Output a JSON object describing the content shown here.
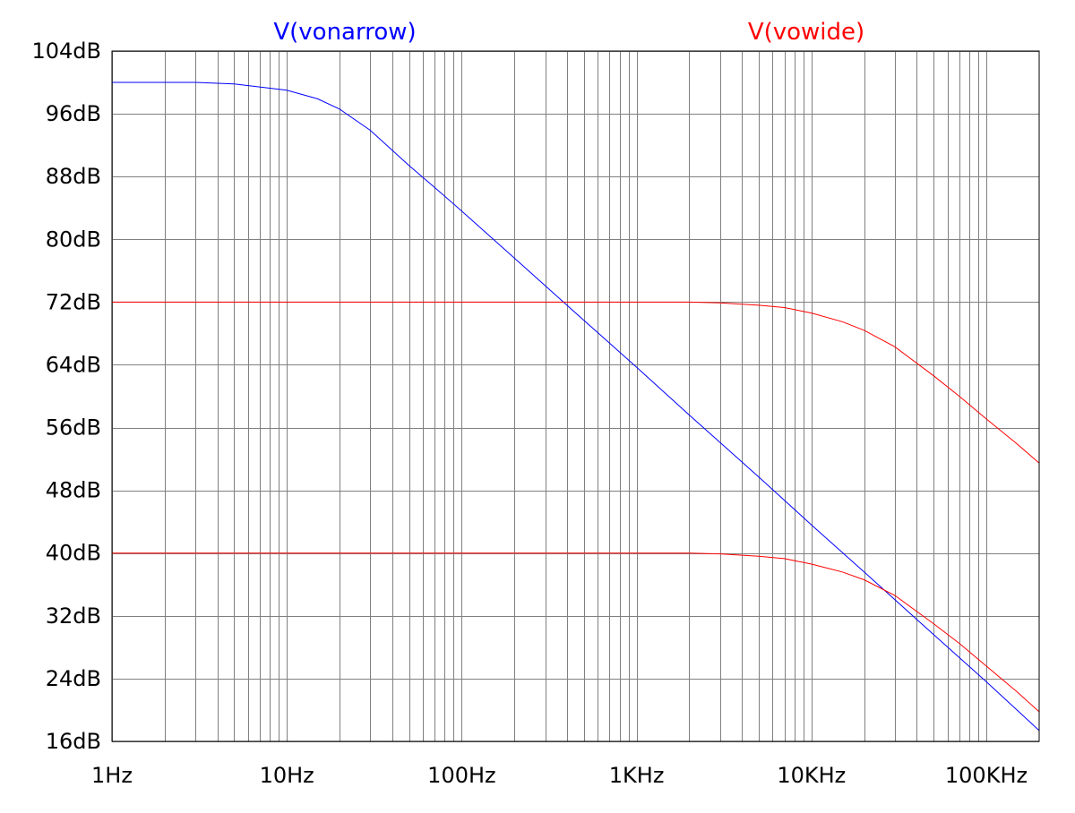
{
  "chart_data": {
    "type": "line",
    "x_scale": "log",
    "xlim": [
      1,
      200000
    ],
    "ylim": [
      16,
      104
    ],
    "grid": true,
    "legend_placement": "top",
    "x_tick_labels": [
      {
        "value": 1,
        "label": "1Hz"
      },
      {
        "value": 10,
        "label": "10Hz"
      },
      {
        "value": 100,
        "label": "100Hz"
      },
      {
        "value": 1000,
        "label": "1KHz"
      },
      {
        "value": 10000,
        "label": "10KHz"
      },
      {
        "value": 100000,
        "label": "100KHz"
      }
    ],
    "y_tick_labels": [
      {
        "value": 104,
        "label": "104dB"
      },
      {
        "value": 96,
        "label": "96dB"
      },
      {
        "value": 88,
        "label": "88dB"
      },
      {
        "value": 80,
        "label": "80dB"
      },
      {
        "value": 72,
        "label": "72dB"
      },
      {
        "value": 64,
        "label": "64dB"
      },
      {
        "value": 56,
        "label": "56dB"
      },
      {
        "value": 48,
        "label": "48dB"
      },
      {
        "value": 40,
        "label": "40dB"
      },
      {
        "value": 32,
        "label": "32dB"
      },
      {
        "value": 24,
        "label": "24dB"
      },
      {
        "value": 16,
        "label": "16dB"
      }
    ],
    "legend": [
      {
        "label": "V(vonarrow)",
        "color": "#0000ff"
      },
      {
        "label": "V(vowide)",
        "color": "#ff0000"
      }
    ],
    "series": [
      {
        "name": "V(vonarrow)",
        "color": "#0000ff",
        "x": [
          1,
          2,
          3,
          5,
          10,
          15,
          20,
          30,
          50,
          70,
          100,
          200,
          400,
          1000,
          2000,
          5000,
          10000,
          20000,
          50000,
          100000,
          200000
        ],
        "y": [
          100,
          100,
          100,
          99.8,
          99.0,
          97.9,
          96.6,
          93.9,
          89.4,
          86.6,
          83.6,
          77.6,
          71.6,
          63.7,
          57.6,
          49.7,
          43.6,
          37.6,
          29.6,
          23.6,
          17.4
        ]
      },
      {
        "name": "V(vowide)",
        "color": "#ff0000",
        "x": [
          1,
          100,
          1000,
          2000,
          3000,
          5000,
          7000,
          10000,
          15000,
          20000,
          30000,
          50000,
          70000,
          100000,
          150000,
          200000
        ],
        "y": [
          72,
          72,
          72,
          72,
          71.9,
          71.6,
          71.3,
          70.6,
          69.5,
          68.4,
          66.3,
          62.6,
          60.0,
          57.1,
          53.9,
          51.5
        ]
      },
      {
        "name": "",
        "color": "#ff0000",
        "x": [
          1,
          100,
          1000,
          2000,
          3000,
          5000,
          7000,
          10000,
          15000,
          20000,
          30000,
          50000,
          70000,
          100000,
          150000,
          200000
        ],
        "y": [
          40,
          40,
          40,
          40,
          39.9,
          39.6,
          39.3,
          38.6,
          37.6,
          36.6,
          34.6,
          31.0,
          28.5,
          25.6,
          22.3,
          19.8
        ]
      }
    ]
  }
}
